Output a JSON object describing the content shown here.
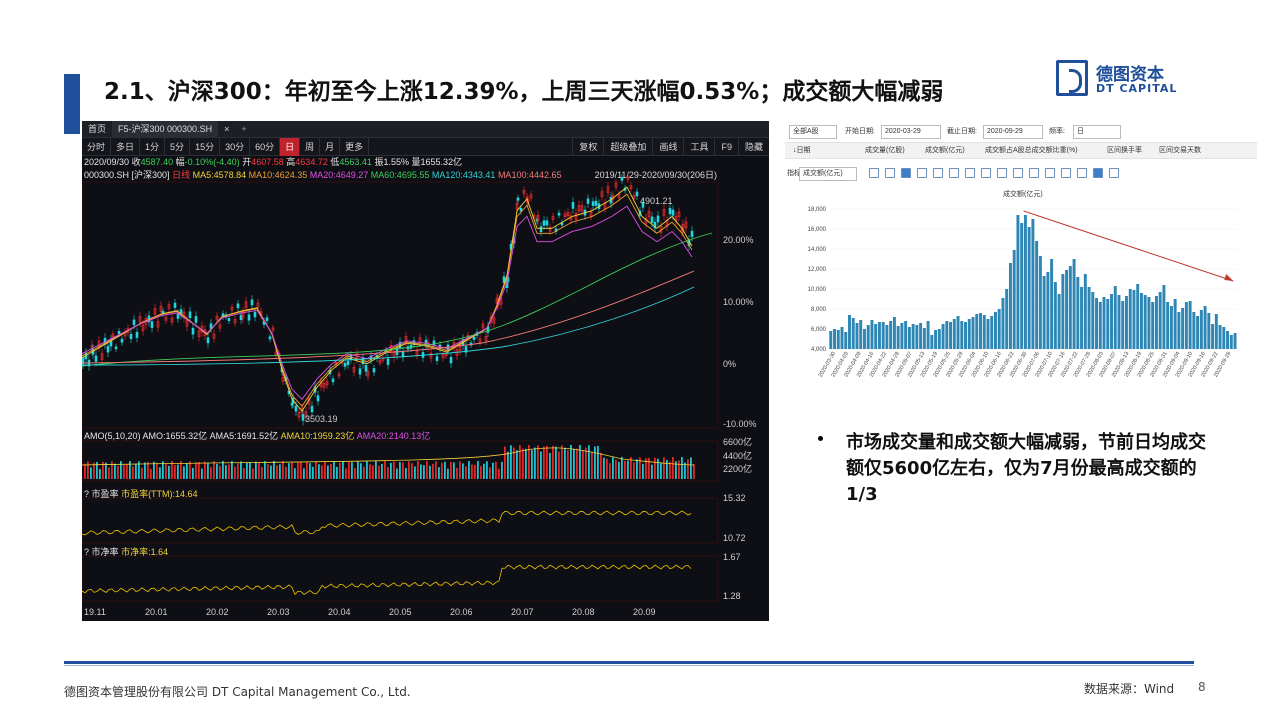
{
  "slide": {
    "title": "2.1、沪深300：年初至今上涨12.39%，上周三天涨幅0.53%；成交额大幅减弱",
    "logo_cn": "德图资本",
    "logo_en": "DT CAPITAL",
    "bullet": "市场成交量和成交额大幅减弱，节前日均成交额仅5600亿左右，仅为7月份最高成交额的1/3",
    "footer_company": "德图资本管理股份有限公司  DT Capital Management  Co., Ltd.",
    "footer_source": "数据来源：Wind",
    "page_number": "8"
  },
  "terminal": {
    "tabs": [
      "首页",
      "F5-沪深300 000300.SH",
      "×",
      "+"
    ],
    "tools_left": [
      "分时",
      "多日",
      "1分",
      "5分",
      "15分",
      "30分",
      "60分",
      "日",
      "周",
      "月",
      "更多"
    ],
    "tools_right": [
      "复权",
      "超级叠加",
      "画线",
      "工具",
      "F9",
      "隐藏"
    ],
    "quote": {
      "date": "2020/09/30",
      "close_label": "收",
      "close": "4587.40",
      "chg_label": "幅",
      "chg": "-0.10%(-4.40)",
      "open_label": "开",
      "open": "4607.58",
      "high_label": "高",
      "high": "4634.72",
      "low_label": "低",
      "low": "4563.41",
      "amp_label": "振",
      "amp": "1.55%",
      "amt_label": "量",
      "amt": "1655.32亿"
    },
    "ma": {
      "code": "000300.SH [沪深300]",
      "line": "日线",
      "ma5": "MA5:4578.84",
      "ma10": "MA10:4624.35",
      "ma20": "MA20:4649.27",
      "ma60": "MA60:4695.55",
      "ma120": "MA120:4343.41",
      "ma100": "MA100:4442.65",
      "range": "2019/11/29-2020/09/30(206日)"
    },
    "price_axis": [
      "20.00%",
      "10.00%",
      "0%",
      "-10.00%"
    ],
    "annot_high": "4901.21",
    "annot_low": "3503.19",
    "amo_line": {
      "label": "AMO(5,10,20)",
      "amo": "AMO:1655.32亿",
      "amo5": "AMA5:1691.52亿",
      "ama10": "AMA10:1959.23亿",
      "ama20": "AMA20:2140.13亿"
    },
    "amo_axis": [
      "6600亿",
      "4400亿",
      "2200亿"
    ],
    "pe": {
      "q": "?",
      "name": "市盈率",
      "val": "市盈率(TTM):14.64",
      "axis_top": "15.32",
      "axis_bottom": "10.72"
    },
    "pb": {
      "q": "?",
      "name": "市净率",
      "val": "市净率:1.64",
      "axis_top": "1.67",
      "axis_bottom": "1.28"
    },
    "dates": [
      "19.11",
      "20.01",
      "20.02",
      "20.03",
      "20.04",
      "20.05",
      "20.06",
      "20.07",
      "20.08",
      "20.09"
    ]
  },
  "right_panel": {
    "scope": "全部A股",
    "start_label": "开始日期:",
    "start_date": "2020-03-29",
    "end_label": "截止日期:",
    "end_date": "2020-09-29",
    "freq_label": "频率:",
    "freq": "日",
    "columns": [
      "↓日期",
      "成交量(亿股)",
      "成交额(亿元)",
      "成交额占A股总成交额比重(%)",
      "区间换手率",
      "区间交易天数"
    ],
    "metric_prefix": "指标",
    "metric": "成交额(亿元)"
  },
  "chart_data": {
    "type": "bar",
    "title": "成交额(亿元)",
    "ylim": [
      4000,
      18000
    ],
    "y_ticks": [
      "18,000",
      "16,000",
      "14,000",
      "12,000",
      "10,000",
      "8,000",
      "6,000",
      "4,000"
    ],
    "x_tick_labels": [
      "2020-03-30",
      "2020-04-03",
      "2020-04-09",
      "2020-04-16",
      "2020-04-22",
      "2020-04-28",
      "2020-05-07",
      "2020-05-13",
      "2020-05-19",
      "2020-05-25",
      "2020-05-29",
      "2020-06-04",
      "2020-06-10",
      "2020-06-16",
      "2020-06-22",
      "2020-06-30",
      "2020-07-06",
      "2020-07-10",
      "2020-07-16",
      "2020-07-22",
      "2020-07-28",
      "2020-08-03",
      "2020-08-07",
      "2020-08-13",
      "2020-08-19",
      "2020-08-25",
      "2020-08-31",
      "2020-09-04",
      "2020-09-10",
      "2020-09-16",
      "2020-09-22",
      "2020-09-28"
    ],
    "values": [
      5800,
      6000,
      5900,
      6200,
      5700,
      7400,
      7100,
      6600,
      6900,
      6000,
      6400,
      6900,
      6500,
      6700,
      6700,
      6400,
      6800,
      7200,
      6300,
      6600,
      6800,
      6200,
      6500,
      6400,
      6600,
      6100,
      6800,
      5400,
      5900,
      6000,
      6500,
      6800,
      6700,
      7000,
      7300,
      6800,
      6700,
      7000,
      7200,
      7500,
      7600,
      7400,
      7000,
      7300,
      7700,
      8000,
      9100,
      10000,
      12600,
      13900,
      17400,
      16600,
      17400,
      16200,
      17000,
      14800,
      13300,
      11300,
      11700,
      13000,
      10700,
      9500,
      11500,
      11900,
      12300,
      13000,
      11200,
      10200,
      11500,
      10200,
      9700,
      9100,
      8700,
      9200,
      9000,
      9500,
      10300,
      9400,
      8800,
      9300,
      10000,
      9900,
      10500,
      9600,
      9400,
      9200,
      8700,
      9300,
      9700,
      10400,
      8700,
      8300,
      9000,
      7700,
      8100,
      8700,
      8800,
      7700,
      7300,
      7900,
      8300,
      7600,
      6500,
      7500,
      6400,
      6200,
      5800,
      5400,
      5600
    ],
    "trend_arrow": {
      "from_index": 52,
      "to_index": 108,
      "color": "#c0392b"
    },
    "bar_color": "#2e86b5"
  }
}
